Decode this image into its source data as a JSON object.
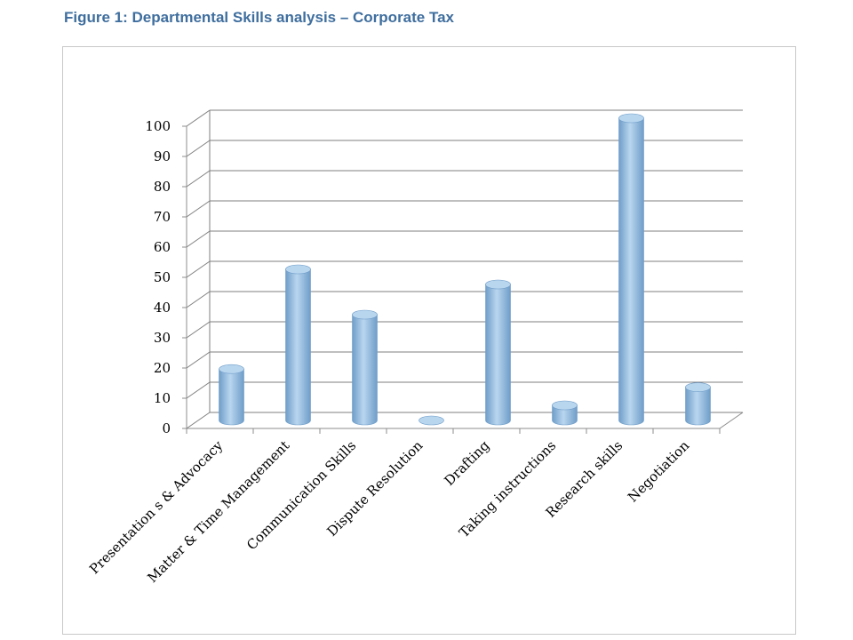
{
  "figure": {
    "title": "Figure 1: Departmental Skills analysis – Corporate Tax"
  },
  "chart_data": {
    "type": "bar",
    "style": "3d-cylinder",
    "categories": [
      "Presentation s & Advocacy",
      "Matter & Time Management",
      "Communication Skills",
      "Dispute Resolution",
      "Drafting",
      "Taking instructions",
      "Research skills",
      "Negotiation"
    ],
    "values": [
      17,
      50,
      35,
      0,
      45,
      5,
      100,
      11
    ],
    "ylim": [
      0,
      100
    ],
    "yticks": [
      "0",
      "10",
      "20",
      "30",
      "40",
      "50",
      "60",
      "70",
      "80",
      "90",
      "100"
    ],
    "grid": true,
    "legend": "none",
    "colors": {
      "bar_fill": "#9cc3e5",
      "bar_dark": "#6f9dc8",
      "bar_top": "#b9d6ef",
      "grid": "#7f7f7f"
    }
  }
}
